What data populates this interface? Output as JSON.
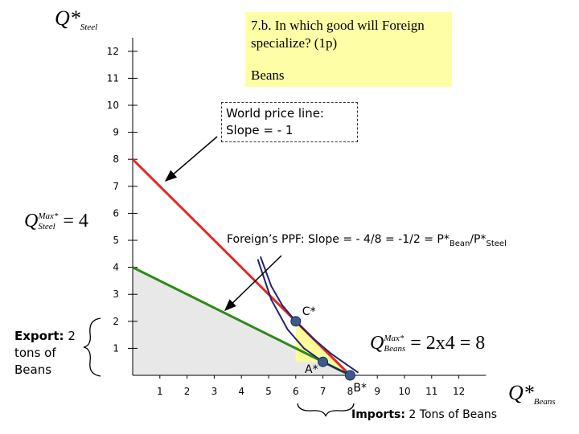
{
  "chart_data": {
    "type": "line",
    "ylabel": {
      "main": "Q*",
      "sub": "Steel"
    },
    "xlabel": {
      "main": "Q*",
      "sub": "Beans"
    },
    "xlim": [
      0,
      13
    ],
    "ylim": [
      0,
      12.5
    ],
    "xticks": [
      1,
      2,
      3,
      4,
      5,
      6,
      7,
      8,
      9,
      10,
      11,
      12
    ],
    "yticks": [
      1,
      2,
      3,
      4,
      5,
      6,
      7,
      8,
      9,
      10,
      11,
      12
    ],
    "series": [
      {
        "color": "#e32b22",
        "x": [
          0,
          8
        ],
        "values": [
          8,
          0
        ]
      },
      {
        "color": "#2e8a1c",
        "fill": "#e8e8e8",
        "x": [
          0,
          8
        ],
        "values": [
          4,
          0
        ]
      },
      {
        "color": "#25236e",
        "x": [
          4.7,
          5.1,
          5.5,
          6,
          6.6,
          7.3,
          8.3
        ],
        "values": [
          4.4,
          3.3,
          2.6,
          2,
          1.4,
          0.8,
          0.1
        ]
      },
      {
        "color": "#25236e",
        "x": [
          4.6,
          5.1,
          5.7,
          6.3,
          7,
          7.6,
          8.1
        ],
        "values": [
          4.3,
          2.8,
          1.7,
          1,
          0.5,
          0.2,
          0
        ]
      }
    ],
    "points": [
      {
        "label": "C*",
        "x": 6,
        "y": 2
      },
      {
        "label": "A*",
        "x": 7,
        "y": 0.5
      },
      {
        "label": "B*",
        "x": 8,
        "y": 0
      }
    ],
    "point_color": "#3b5b8f",
    "question": {
      "text": "7.b. In which good will Foreign specialize? (1p)",
      "answer": "Beans"
    },
    "world_price": {
      "line1": "World price line:",
      "line2": "Slope = - 1"
    },
    "ppf_note": {
      "text": "Foreign’s PPF: Slope = - 4/8 = -1/2 = P*",
      "sub1": "Bean",
      "mid": "/P*",
      "sub2": "Steel"
    },
    "max_steel": {
      "base": "Q",
      "sup": "Max*",
      "sub": "Steel",
      "rest": "= 4"
    },
    "max_beans": {
      "base": "Q",
      "sup": "Max*",
      "sub": "Beans",
      "rest": "= 2x4 = 8"
    },
    "export_note": {
      "bold": "Export:",
      "text": "2 tons of Beans"
    },
    "import_note": {
      "bold": "Imports:",
      "text": "2 Tons of Beans"
    }
  }
}
